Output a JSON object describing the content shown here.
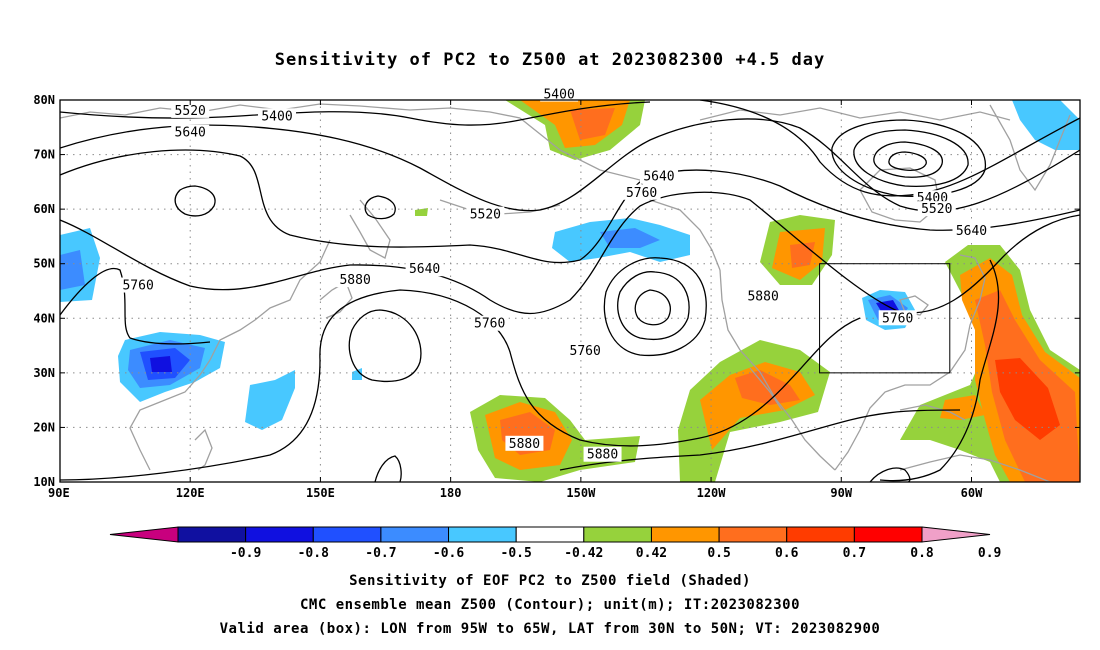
{
  "title": "Sensitivity of PC2 to Z500 at 2023082300 +4.5 day",
  "map": {
    "lat_labels": [
      "80N",
      "70N",
      "60N",
      "50N",
      "40N",
      "30N",
      "20N",
      "10N"
    ],
    "lon_labels": [
      "90E",
      "120E",
      "150E",
      "180",
      "150W",
      "120W",
      "90W",
      "60W"
    ],
    "lon_range": [
      90,
      325
    ],
    "lat_range": [
      10,
      80
    ],
    "valid_box": {
      "lon": [
        265,
        295
      ],
      "lat": [
        30,
        50
      ]
    },
    "contour_labels": [
      {
        "text": "5400",
        "lon": 140,
        "lat": 77
      },
      {
        "text": "5400",
        "lon": 205,
        "lat": 81
      },
      {
        "text": "5400",
        "lon": 291,
        "lat": 62
      },
      {
        "text": "5520",
        "lon": 120,
        "lat": 78
      },
      {
        "text": "5520",
        "lon": 188,
        "lat": 59
      },
      {
        "text": "5520",
        "lon": 292,
        "lat": 60
      },
      {
        "text": "5640",
        "lon": 120,
        "lat": 74
      },
      {
        "text": "5640",
        "lon": 174,
        "lat": 49
      },
      {
        "text": "5640",
        "lon": 228,
        "lat": 66
      },
      {
        "text": "5640",
        "lon": 300,
        "lat": 56
      },
      {
        "text": "5760",
        "lon": 108,
        "lat": 46
      },
      {
        "text": "5760",
        "lon": 189,
        "lat": 39
      },
      {
        "text": "5760",
        "lon": 224,
        "lat": 63
      },
      {
        "text": "5760",
        "lon": 211,
        "lat": 34
      },
      {
        "text": "5760",
        "lon": 283,
        "lat": 40
      },
      {
        "text": "5880",
        "lon": 158,
        "lat": 47
      },
      {
        "text": "5880",
        "lon": 252,
        "lat": 44
      },
      {
        "text": "5880",
        "lon": 197,
        "lat": 17
      },
      {
        "text": "5880",
        "lon": 215,
        "lat": 15
      }
    ]
  },
  "colorbar": {
    "colors": [
      "#c8007e",
      "#1010a0",
      "#1010e0",
      "#2050ff",
      "#3c8cff",
      "#48c8ff",
      "#ffffff",
      "#96d23c",
      "#ff9600",
      "#ff6e1e",
      "#ff3c00",
      "#ff0000",
      "#f0a0c8"
    ],
    "labels": [
      "-0.9",
      "-0.8",
      "-0.7",
      "-0.6",
      "-0.5",
      "-0.42",
      "0.42",
      "0.5",
      "0.6",
      "0.7",
      "0.8",
      "0.9"
    ]
  },
  "caption": {
    "line1": "Sensitivity of EOF PC2 to Z500 field (Shaded)",
    "line2": "CMC ensemble mean Z500 (Contour); unit(m); IT:2023082300",
    "line3": "Valid area (box): LON from 95W to 65W, LAT from 30N to 50N; VT: 2023082900"
  }
}
